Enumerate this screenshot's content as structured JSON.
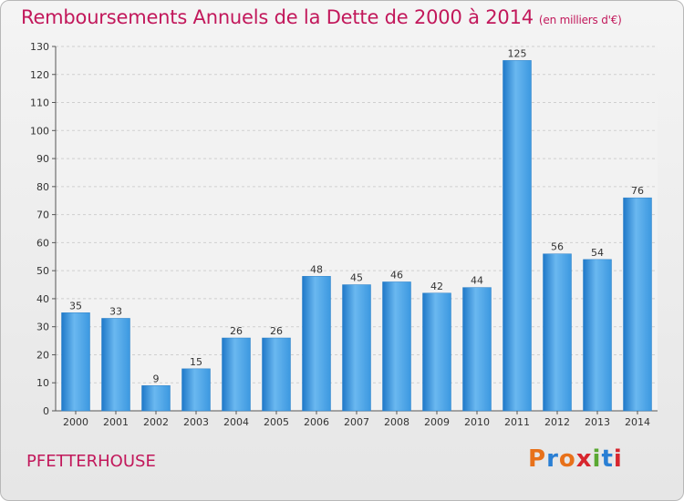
{
  "title": "Remboursements Annuels de la Dette de 2000 à 2014",
  "subtitle": "(en milliers d'€)",
  "commune": "PFETTERHOUSE",
  "logo": {
    "text": "Proxiti",
    "colors": [
      "#e8711a",
      "#2a7fd4",
      "#e8711a",
      "#d7262e",
      "#5aa832",
      "#2a7fd4",
      "#d7262e"
    ]
  },
  "colors": {
    "bar": "#3c98e0",
    "bar_light": "#6ab8f0",
    "bar_dark": "#1f78c8",
    "accent": "#c2185b",
    "grid": "#cfcfcf"
  },
  "chart_data": {
    "type": "bar",
    "categories": [
      "2000",
      "2001",
      "2002",
      "2003",
      "2004",
      "2005",
      "2006",
      "2007",
      "2008",
      "2009",
      "2010",
      "2011",
      "2012",
      "2013",
      "2014"
    ],
    "values": [
      35,
      33,
      9,
      15,
      26,
      26,
      48,
      45,
      46,
      42,
      44,
      125,
      56,
      54,
      76
    ],
    "ylim": [
      0,
      130
    ],
    "yticks": [
      0,
      10,
      20,
      30,
      40,
      50,
      60,
      70,
      80,
      90,
      100,
      110,
      120,
      130
    ],
    "grid": true,
    "data_labels": true
  }
}
